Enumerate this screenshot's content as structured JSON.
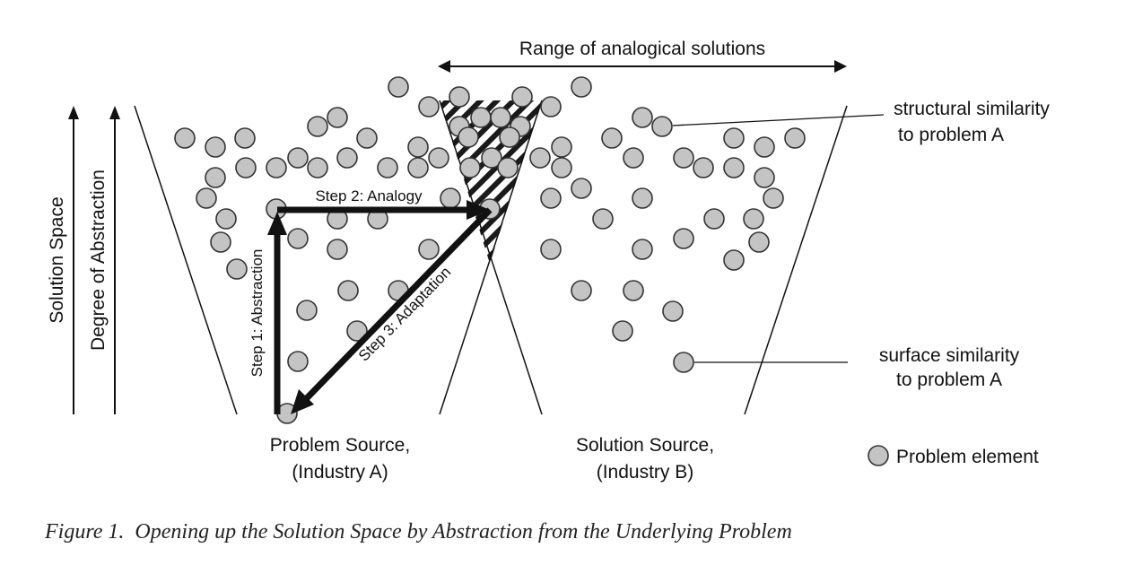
{
  "title": "Range of analogical solutions",
  "axes": {
    "solution_space": "Solution Space",
    "degree_of_abstraction": "Degree of Abstraction"
  },
  "steps": {
    "abstraction": "Step 1: Abstraction",
    "analogy": "Step 2: Analogy",
    "adaptation": "Step 3: Adaptation"
  },
  "annotations": {
    "structural_line1": "structural similarity",
    "structural_line2": "to problem A",
    "surface_line1": "surface similarity",
    "surface_line2": "to problem A"
  },
  "sources": {
    "problem_line1": "Problem Source,",
    "problem_line2": "(Industry A)",
    "solution_line1": "Solution Source,",
    "solution_line2": "(Industry B)"
  },
  "legend": {
    "problem_element": "Problem element"
  },
  "caption": "Figure 1.  Opening up the Solution Space by Abstraction from the Underlying Problem"
}
